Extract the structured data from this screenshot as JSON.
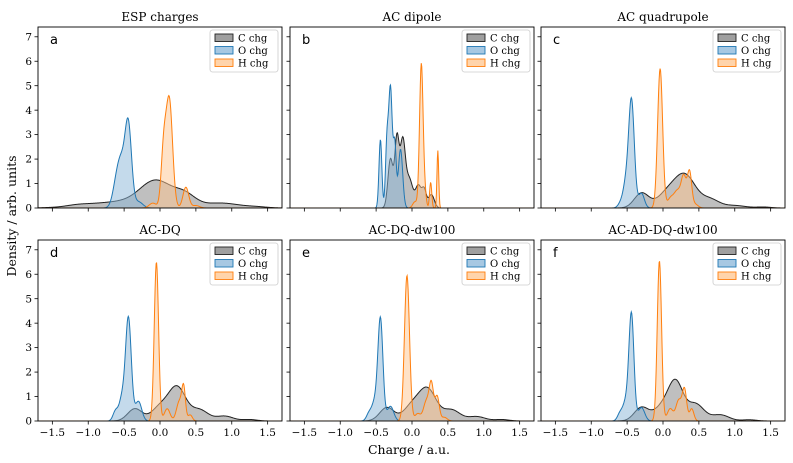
{
  "chart_data": {
    "type": "area",
    "xlabel": "Charge / a.u.",
    "ylabel": "Density / arb. units",
    "xlim": [
      -1.7,
      1.7
    ],
    "ylim": [
      0,
      7.4
    ],
    "xticks": [
      -1.5,
      -1.0,
      -0.5,
      0.0,
      0.5,
      1.0,
      1.5
    ],
    "xtick_labels": [
      "−1.5",
      "−1.0",
      "−0.5",
      "0.0",
      "0.5",
      "1.0",
      "1.5"
    ],
    "yticks": [
      0,
      1,
      2,
      3,
      4,
      5,
      6,
      7
    ],
    "ytick_labels": [
      "0",
      "1",
      "2",
      "3",
      "4",
      "5",
      "6",
      "7"
    ],
    "legend_position": "top-right",
    "legend": [
      "C chg",
      "O chg",
      "H chg"
    ],
    "series_colors": {
      "C": {
        "line": "#222222",
        "fill": "#7f7f7f"
      },
      "O": {
        "line": "#1f77b4",
        "fill": "#8ab6d8"
      },
      "H": {
        "line": "#ff7f0e",
        "fill": "#ffc58f"
      }
    },
    "panels": [
      {
        "letter": "a",
        "title": "ESP charges",
        "series": [
          {
            "name": "C chg",
            "peaks": [
              [
                -1.15,
                0.05,
                0.15
              ],
              [
                -0.55,
                0.25,
                0.45
              ],
              [
                -0.05,
                1.0,
                0.22
              ],
              [
                0.35,
                0.45,
                0.15
              ],
              [
                0.85,
                0.2,
                0.25
              ],
              [
                1.35,
                0.04,
                0.15
              ]
            ]
          },
          {
            "name": "O chg",
            "peaks": [
              [
                -0.62,
                0.55,
                0.05
              ],
              [
                -0.54,
                1.85,
                0.06
              ],
              [
                -0.44,
                3.15,
                0.045
              ],
              [
                -0.3,
                0.25,
                0.06
              ]
            ]
          },
          {
            "name": "H chg",
            "peaks": [
              [
                -0.1,
                0.2,
                0.05
              ],
              [
                0.05,
                2.2,
                0.035
              ],
              [
                0.13,
                4.4,
                0.045
              ],
              [
                0.36,
                0.85,
                0.04
              ],
              [
                0.5,
                0.1,
                0.05
              ]
            ]
          }
        ]
      },
      {
        "letter": "b",
        "title": "AC dipole",
        "series": [
          {
            "name": "C chg",
            "peaks": [
              [
                -0.3,
                2.0,
                0.035
              ],
              [
                -0.21,
                2.8,
                0.03
              ],
              [
                -0.13,
                2.6,
                0.035
              ],
              [
                -0.04,
                1.2,
                0.05
              ],
              [
                0.09,
                0.9,
                0.04
              ],
              [
                0.17,
                0.7,
                0.03
              ],
              [
                0.27,
                0.55,
                0.04
              ]
            ]
          },
          {
            "name": "O chg",
            "peaks": [
              [
                -0.44,
                2.8,
                0.02
              ],
              [
                -0.35,
                2.5,
                0.02
              ],
              [
                -0.3,
                4.9,
                0.025
              ],
              [
                -0.24,
                2.5,
                0.02
              ],
              [
                -0.16,
                2.4,
                0.03
              ]
            ]
          },
          {
            "name": "H chg",
            "peaks": [
              [
                0.04,
                0.25,
                0.03
              ],
              [
                0.13,
                5.9,
                0.025
              ],
              [
                0.18,
                0.5,
                0.02
              ],
              [
                0.26,
                1.05,
                0.015
              ],
              [
                0.36,
                2.35,
                0.012
              ]
            ]
          }
        ]
      },
      {
        "letter": "c",
        "title": "AC quadrupole",
        "series": [
          {
            "name": "C chg",
            "peaks": [
              [
                -0.3,
                0.6,
                0.1
              ],
              [
                0.08,
                0.65,
                0.15
              ],
              [
                0.32,
                1.2,
                0.14
              ],
              [
                0.65,
                0.35,
                0.13
              ],
              [
                1.0,
                0.1,
                0.15
              ],
              [
                1.4,
                0.04,
                0.1
              ]
            ]
          },
          {
            "name": "O chg",
            "peaks": [
              [
                -0.58,
                0.25,
                0.04
              ],
              [
                -0.52,
                0.8,
                0.035
              ],
              [
                -0.44,
                4.45,
                0.04
              ],
              [
                -0.3,
                0.6,
                0.04
              ]
            ]
          },
          {
            "name": "H chg",
            "peaks": [
              [
                -0.04,
                5.7,
                0.035
              ],
              [
                0.1,
                0.35,
                0.04
              ],
              [
                0.2,
                0.7,
                0.05
              ],
              [
                0.29,
                1.2,
                0.035
              ],
              [
                0.37,
                1.45,
                0.03
              ],
              [
                0.45,
                0.15,
                0.04
              ]
            ]
          }
        ]
      },
      {
        "letter": "d",
        "title": "AC-DQ",
        "series": [
          {
            "name": "C chg",
            "peaks": [
              [
                -0.35,
                0.5,
                0.1
              ],
              [
                0.0,
                0.55,
                0.12
              ],
              [
                0.24,
                1.35,
                0.12
              ],
              [
                0.55,
                0.45,
                0.12
              ],
              [
                0.9,
                0.2,
                0.12
              ],
              [
                1.25,
                0.06,
                0.1
              ]
            ]
          },
          {
            "name": "O chg",
            "peaks": [
              [
                -0.62,
                0.4,
                0.035
              ],
              [
                -0.53,
                0.9,
                0.04
              ],
              [
                -0.44,
                4.2,
                0.04
              ],
              [
                -0.3,
                0.8,
                0.045
              ]
            ]
          },
          {
            "name": "H chg",
            "peaks": [
              [
                -0.05,
                6.5,
                0.03
              ],
              [
                0.1,
                0.5,
                0.04
              ],
              [
                0.27,
                0.8,
                0.04
              ],
              [
                0.33,
                1.25,
                0.025
              ],
              [
                0.42,
                0.25,
                0.03
              ]
            ]
          }
        ]
      },
      {
        "letter": "e",
        "title": "AC-DQ-dw100",
        "series": [
          {
            "name": "C chg",
            "peaks": [
              [
                -0.35,
                0.55,
                0.1
              ],
              [
                0.0,
                0.6,
                0.12
              ],
              [
                0.22,
                1.25,
                0.12
              ],
              [
                0.55,
                0.45,
                0.12
              ],
              [
                0.9,
                0.18,
                0.12
              ],
              [
                1.25,
                0.06,
                0.1
              ]
            ]
          },
          {
            "name": "O chg",
            "peaks": [
              [
                -0.6,
                0.3,
                0.035
              ],
              [
                -0.52,
                0.75,
                0.04
              ],
              [
                -0.44,
                4.15,
                0.035
              ],
              [
                -0.3,
                0.6,
                0.045
              ]
            ]
          },
          {
            "name": "H chg",
            "peaks": [
              [
                -0.07,
                5.95,
                0.035
              ],
              [
                0.08,
                0.3,
                0.04
              ],
              [
                0.2,
                0.8,
                0.04
              ],
              [
                0.27,
                1.45,
                0.03
              ],
              [
                0.35,
                1.0,
                0.03
              ],
              [
                0.45,
                0.15,
                0.04
              ]
            ]
          }
        ]
      },
      {
        "letter": "f",
        "title": "AC-AD-DQ-dw100",
        "series": [
          {
            "name": "C chg",
            "peaks": [
              [
                -0.3,
                0.55,
                0.1
              ],
              [
                0.0,
                0.6,
                0.12
              ],
              [
                0.18,
                1.45,
                0.1
              ],
              [
                0.45,
                0.7,
                0.12
              ],
              [
                0.8,
                0.25,
                0.12
              ],
              [
                1.2,
                0.05,
                0.1
              ]
            ]
          },
          {
            "name": "O chg",
            "peaks": [
              [
                -0.6,
                0.3,
                0.035
              ],
              [
                -0.52,
                0.75,
                0.04
              ],
              [
                -0.44,
                4.35,
                0.035
              ],
              [
                -0.3,
                0.55,
                0.045
              ]
            ]
          },
          {
            "name": "H chg",
            "peaks": [
              [
                -0.05,
                6.55,
                0.03
              ],
              [
                0.1,
                0.5,
                0.04
              ],
              [
                0.22,
                0.85,
                0.04
              ],
              [
                0.3,
                1.25,
                0.03
              ],
              [
                0.4,
                0.5,
                0.03
              ]
            ]
          }
        ]
      }
    ]
  }
}
